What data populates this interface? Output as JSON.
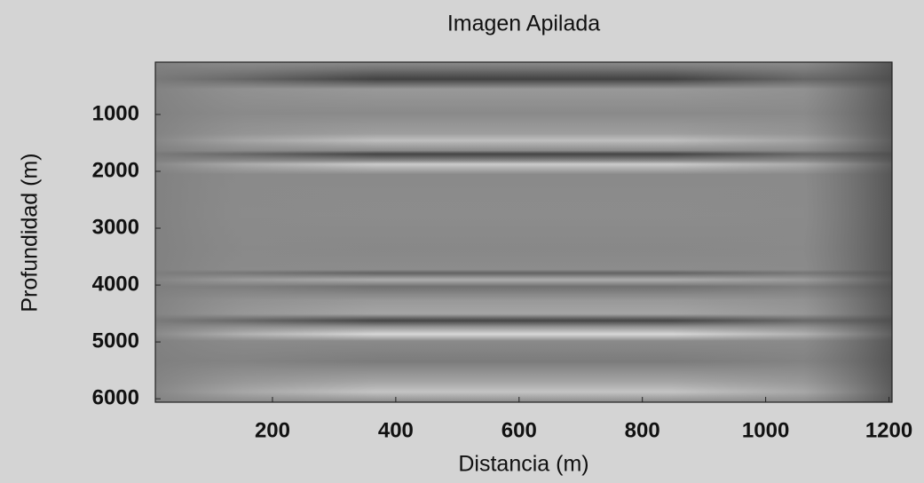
{
  "chart_data": {
    "type": "image",
    "title": "Imagen Apilada",
    "x_label": "Distancia (m)",
    "y_label": "Profundidad (m)",
    "xlim": [
      10,
      1205
    ],
    "xticks": [
      200,
      400,
      600,
      800,
      1000,
      1200
    ],
    "ylim": [
      80,
      6060
    ],
    "yticks": [
      1000,
      2000,
      3000,
      4000,
      5000,
      6000
    ],
    "y_inverted": true,
    "colormap": "gray"
  }
}
